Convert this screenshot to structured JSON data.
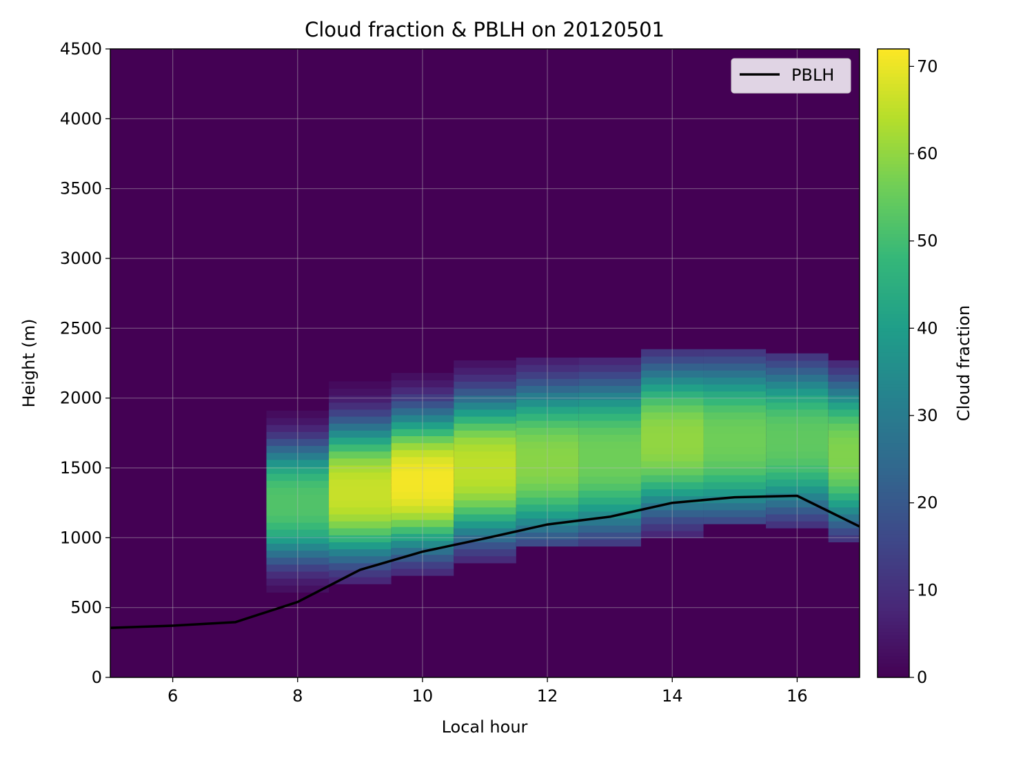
{
  "chart_data": {
    "type": "heatmap",
    "title": "Cloud fraction & PBLH on 20120501",
    "xlabel": "Local hour",
    "ylabel": "Height (m)",
    "colorbar_label": "Cloud fraction",
    "colormap": "viridis",
    "xlim": [
      5,
      17
    ],
    "ylim": [
      0,
      4500
    ],
    "clim": [
      0,
      72
    ],
    "grid": true,
    "legend_position": "top-right",
    "x_ticks": [
      6,
      8,
      10,
      12,
      14,
      16
    ],
    "y_ticks": [
      0,
      500,
      1000,
      1500,
      2000,
      2500,
      3000,
      3500,
      4000,
      4500
    ],
    "colorbar_ticks": [
      0,
      10,
      20,
      30,
      40,
      50,
      60,
      70
    ],
    "cloud_fraction_profiles": [
      {
        "hour": 8,
        "peak": 52,
        "center": 1250,
        "half_width": 330,
        "top": 1870,
        "bottom": 610
      },
      {
        "hour": 9,
        "peak": 66,
        "center": 1330,
        "half_width": 380,
        "top": 2080,
        "bottom": 670
      },
      {
        "hour": 10,
        "peak": 71,
        "center": 1400,
        "half_width": 390,
        "top": 2170,
        "bottom": 730
      },
      {
        "hour": 11,
        "peak": 65,
        "center": 1500,
        "half_width": 400,
        "top": 2230,
        "bottom": 820
      },
      {
        "hour": 12,
        "peak": 59,
        "center": 1550,
        "half_width": 420,
        "top": 2260,
        "bottom": 940
      },
      {
        "hour": 13,
        "peak": 56,
        "center": 1580,
        "half_width": 420,
        "top": 2260,
        "bottom": 940
      },
      {
        "hour": 14,
        "peak": 60,
        "center": 1700,
        "half_width": 410,
        "top": 2320,
        "bottom": 1000
      },
      {
        "hour": 15,
        "peak": 56,
        "center": 1700,
        "half_width": 420,
        "top": 2350,
        "bottom": 1100
      },
      {
        "hour": 16,
        "peak": 54,
        "center": 1700,
        "half_width": 400,
        "top": 2320,
        "bottom": 1070
      },
      {
        "hour": 17,
        "peak": 58,
        "center": 1600,
        "half_width": 400,
        "top": 2260,
        "bottom": 970
      }
    ],
    "series": [
      {
        "name": "PBLH",
        "color": "#000000",
        "x": [
          5,
          6,
          7,
          8,
          9,
          10,
          11,
          12,
          13,
          14,
          15,
          16,
          17
        ],
        "y": [
          355,
          370,
          395,
          540,
          770,
          900,
          995,
          1095,
          1150,
          1250,
          1290,
          1300,
          1080
        ]
      }
    ]
  },
  "colors": {
    "background_cell": "#440154",
    "grid": "#bbbbbb",
    "legend_bg": "#e0d4e4"
  }
}
